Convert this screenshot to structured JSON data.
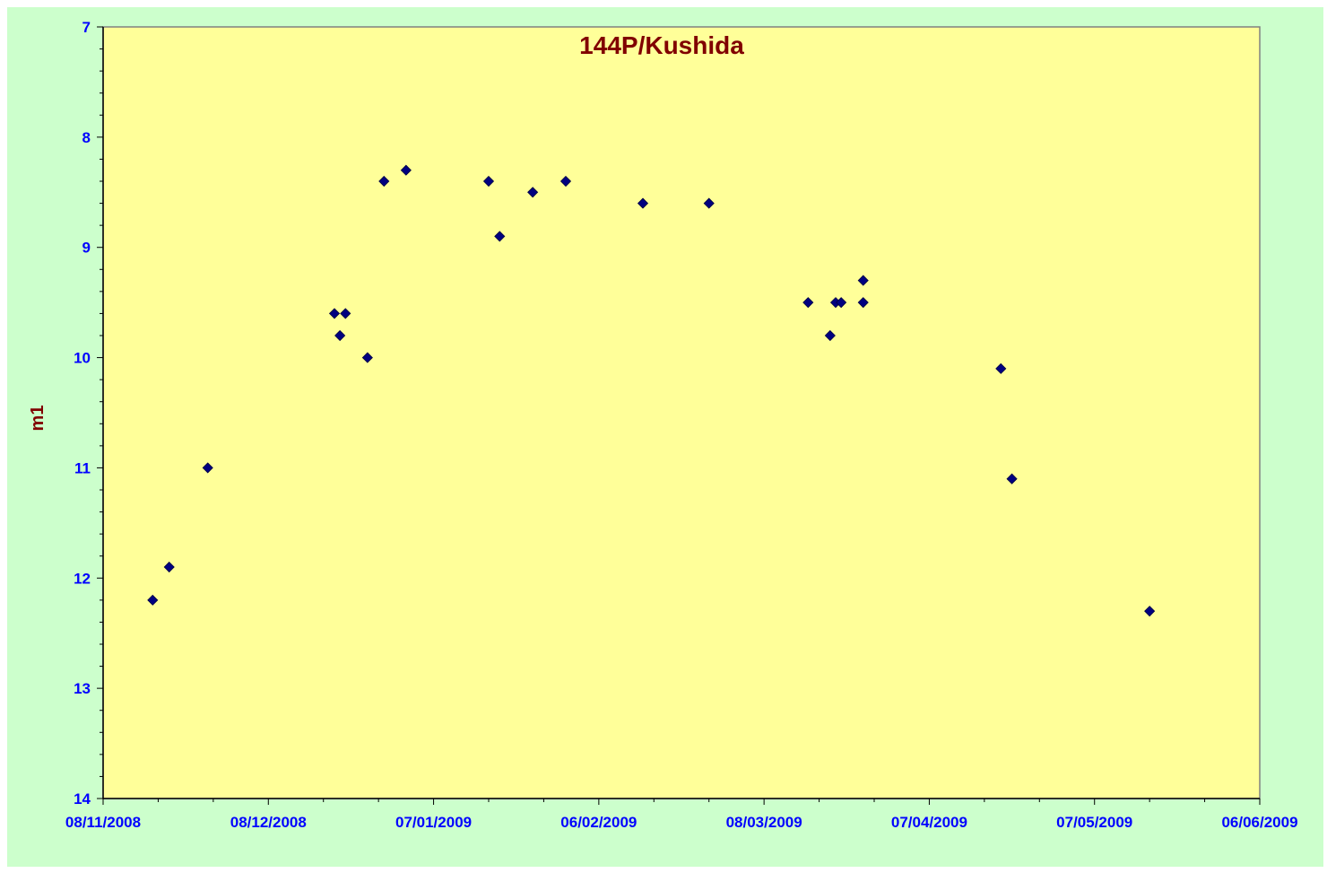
{
  "chart_data": {
    "type": "scatter",
    "title": "144P/Kushida",
    "xlabel": "",
    "ylabel": "m1",
    "y_inverted": true,
    "ylim": [
      7,
      14
    ],
    "y_ticks": [
      "7",
      "8",
      "9",
      "10",
      "11",
      "12",
      "13",
      "14"
    ],
    "xlim": [
      "2008-11-08",
      "2009-06-06"
    ],
    "x_ticks": [
      "08/11/2008",
      "08/12/2008",
      "07/01/2009",
      "06/02/2009",
      "08/03/2009",
      "07/04/2009",
      "07/05/2009",
      "06/06/2009"
    ],
    "grid": false,
    "legend": "none",
    "colors": {
      "background": "#ccffcc",
      "plot_area": "#ffff99",
      "marker": "#000080",
      "title": "#800000",
      "tick_labels": "#0000ff"
    },
    "series": [
      {
        "marker": "diamond",
        "points": [
          {
            "x": "2008-11-17",
            "y": 12.2
          },
          {
            "x": "2008-11-20",
            "y": 11.9
          },
          {
            "x": "2008-11-27",
            "y": 11.0
          },
          {
            "x": "2008-12-20",
            "y": 9.6
          },
          {
            "x": "2008-12-21",
            "y": 9.8
          },
          {
            "x": "2008-12-22",
            "y": 9.6
          },
          {
            "x": "2008-12-26",
            "y": 10.0
          },
          {
            "x": "2008-12-29",
            "y": 8.4
          },
          {
            "x": "2009-01-02",
            "y": 8.3
          },
          {
            "x": "2009-01-17",
            "y": 8.4
          },
          {
            "x": "2009-01-19",
            "y": 8.9
          },
          {
            "x": "2009-01-25",
            "y": 8.5
          },
          {
            "x": "2009-01-31",
            "y": 8.4
          },
          {
            "x": "2009-02-14",
            "y": 8.6
          },
          {
            "x": "2009-02-26",
            "y": 8.6
          },
          {
            "x": "2009-03-16",
            "y": 9.5
          },
          {
            "x": "2009-03-20",
            "y": 9.8
          },
          {
            "x": "2009-03-21",
            "y": 9.5
          },
          {
            "x": "2009-03-22",
            "y": 9.5
          },
          {
            "x": "2009-03-26",
            "y": 9.3
          },
          {
            "x": "2009-03-26",
            "y": 9.5
          },
          {
            "x": "2009-04-20",
            "y": 10.1
          },
          {
            "x": "2009-04-22",
            "y": 11.1
          },
          {
            "x": "2009-05-17",
            "y": 12.3
          }
        ]
      }
    ]
  }
}
